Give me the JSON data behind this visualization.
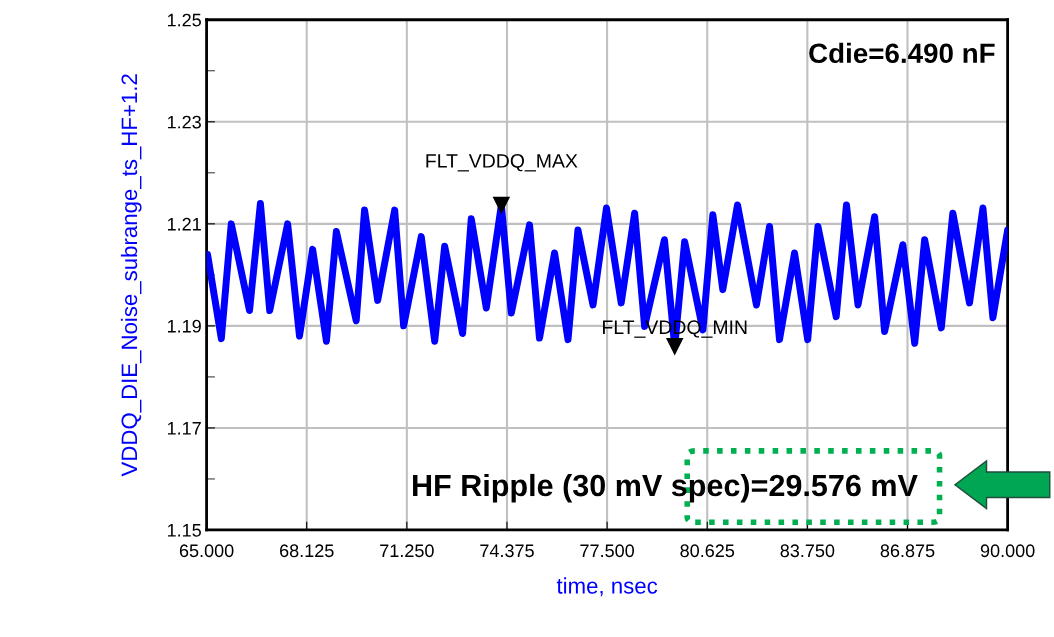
{
  "chart_data": {
    "type": "line",
    "xlabel": "time, nsec",
    "ylabel": "VDDQ_DIE_Noise_subrange_ts_HF+1.2",
    "series": [
      {
        "color": "#0000ff",
        "x": [
          65.03,
          65.46,
          65.77,
          66.34,
          66.68,
          66.97,
          67.53,
          67.9,
          68.31,
          68.74,
          69.05,
          69.67,
          69.93,
          70.34,
          70.87,
          71.15,
          71.7,
          72.12,
          72.43,
          72.99,
          73.26,
          73.73,
          74.2,
          74.51,
          75.08,
          75.39,
          75.86,
          76.28,
          76.59,
          77.06,
          77.48,
          77.94,
          78.36,
          78.67,
          79.29,
          79.61,
          79.92,
          80.49,
          80.8,
          81.11,
          81.57,
          82.16,
          82.57,
          82.88,
          83.35,
          83.76,
          84.08,
          84.65,
          84.97,
          85.33,
          85.85,
          86.16,
          86.73,
          87.1,
          87.41,
          87.93,
          88.29,
          88.81,
          89.23,
          89.54,
          90.0
        ],
        "values": [
          1.204,
          1.1875,
          1.21,
          1.193,
          1.214,
          1.193,
          1.21,
          1.188,
          1.205,
          1.187,
          1.2085,
          1.191,
          1.2127,
          1.195,
          1.2127,
          1.19,
          1.2075,
          1.187,
          1.2056,
          1.1885,
          1.211,
          1.1935,
          1.2137,
          1.1925,
          1.2098,
          1.1876,
          1.2043,
          1.1873,
          1.2088,
          1.1941,
          1.2131,
          1.1945,
          1.2121,
          1.1899,
          1.2069,
          1.186,
          1.2065,
          1.1892,
          1.2118,
          1.1971,
          1.2137,
          1.1941,
          1.2095,
          1.1873,
          1.2043,
          1.1873,
          1.2095,
          1.1918,
          1.2137,
          1.1941,
          1.2114,
          1.1889,
          1.2059,
          1.1866,
          1.2069,
          1.1896,
          1.2121,
          1.1945,
          1.2131,
          1.1916,
          1.2088
        ]
      }
    ],
    "xlim": [
      65,
      90
    ],
    "xticks": [
      {
        "value": 65,
        "label": "65.000"
      },
      {
        "value": 68.125,
        "label": "68.125"
      },
      {
        "value": 71.25,
        "label": "71.250"
      },
      {
        "value": 74.375,
        "label": "74.375"
      },
      {
        "value": 77.5,
        "label": "77.500"
      },
      {
        "value": 80.625,
        "label": "80.625"
      },
      {
        "value": 83.75,
        "label": "83.750"
      },
      {
        "value": 86.875,
        "label": "86.875"
      },
      {
        "value": 90,
        "label": "90.000"
      }
    ],
    "ylim": [
      1.15,
      1.25
    ],
    "yticks": [
      1.15,
      {
        "value": 1.16,
        "label": null
      },
      1.17,
      {
        "value": 1.18,
        "label": null
      },
      1.19,
      {
        "value": 1.2,
        "label": null
      },
      1.21,
      {
        "value": 1.22,
        "label": null
      },
      1.23,
      {
        "value": 1.24,
        "label": null
      },
      1.25
    ],
    "grid": true,
    "annotations": [
      {
        "text": "FLT_VDDQ_MAX",
        "x": 74.2,
        "y": 1.2137
      },
      {
        "text": "FLT_VDDQ_MIN",
        "x": 79.61,
        "y": 1.186
      },
      "Cdie=6.490 nF",
      "HF Ripple (30 mV spec)=29.576 mV"
    ]
  }
}
